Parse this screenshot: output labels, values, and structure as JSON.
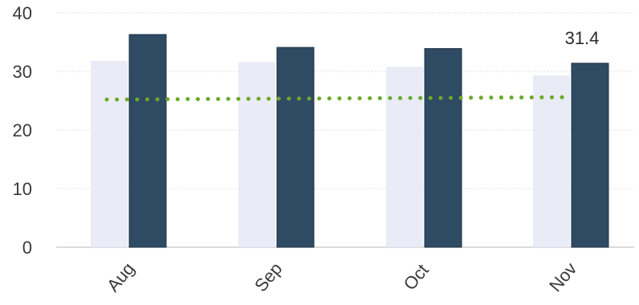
{
  "chart_data": {
    "type": "bar",
    "categories": [
      "Aug",
      "Sep",
      "Oct",
      "Nov"
    ],
    "series": [
      {
        "values": [
          31.8,
          31.6,
          30.8,
          29.3
        ],
        "color": "#e9ebf6"
      },
      {
        "values": [
          36.3,
          34.1,
          33.9,
          31.4
        ],
        "color": "#2f4a63"
      }
    ],
    "lines": [
      {
        "values": [
          25.2,
          25.3,
          25.4,
          25.6
        ],
        "color": "#6aaa2a",
        "style": "dotted"
      }
    ],
    "data_labels": [
      {
        "category": "Nov",
        "series": 1,
        "text": "31.4"
      }
    ],
    "y_ticks": [
      "0",
      "10",
      "20",
      "30",
      "40"
    ],
    "ylim": [
      0,
      40
    ],
    "grid": true,
    "legend": "none",
    "title": "",
    "xlabel": "",
    "ylabel": ""
  }
}
